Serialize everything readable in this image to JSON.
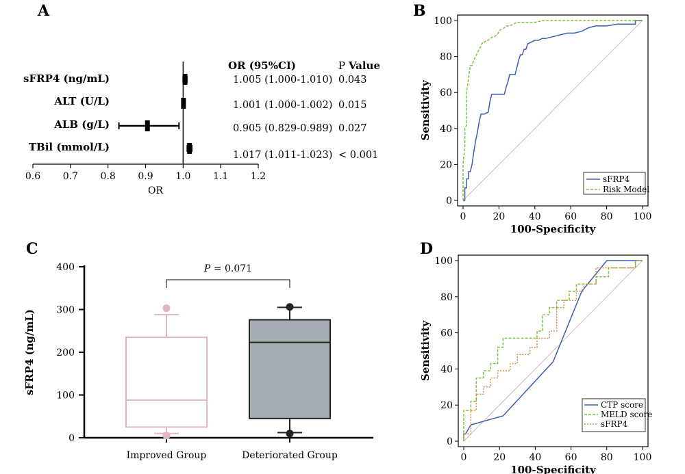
{
  "panel_labels": [
    "A",
    "B",
    "C",
    "D"
  ],
  "forest": {
    "header_or": "OR (95%CI)",
    "header_p_plain": "P ",
    "header_p_bold": "Value",
    "xlabel": "OR",
    "rows": [
      {
        "label": "sFRP4 (ng/mL)",
        "text": "1.005 (1.000-1.010)",
        "p": "0.043"
      },
      {
        "label": "ALT (U/L)",
        "text": "1.001 (1.000-1.002)",
        "p": "0.015"
      },
      {
        "label": "ALB (g/L)",
        "text": "0.905  (0.829-0.989)",
        "p": "0.027"
      },
      {
        "label": "TBil (mmol/L)",
        "text": "1.017 (1.011-1.023)",
        "p": "< 0.001"
      }
    ]
  },
  "chart_data": [
    {
      "panel": "A",
      "type": "forest",
      "xlabel": "OR",
      "xlim": [
        0.6,
        1.2
      ],
      "xticks": [
        "0.6",
        "0.7",
        "0.8",
        "0.9",
        "1.0",
        "1.1",
        "1.2"
      ],
      "reference_line": 1.0,
      "categories": [
        "sFRP4 (ng/mL)",
        "ALT (U/L)",
        "ALB (g/L)",
        "TBil (mmol/L)"
      ],
      "or": [
        1.005,
        1.001,
        0.905,
        1.017
      ],
      "ci_low": [
        1.0,
        1.0,
        0.829,
        1.011
      ],
      "ci_high": [
        1.01,
        1.002,
        0.989,
        1.023
      ],
      "p_values": [
        "0.043",
        "0.015",
        "0.027",
        "< 0.001"
      ]
    },
    {
      "panel": "B",
      "type": "line",
      "xlabel": "100-Specificity",
      "ylabel": "Sensitivity",
      "xlim": [
        0,
        100
      ],
      "ylim": [
        0,
        100
      ],
      "xticks": [
        "0",
        "20",
        "40",
        "60",
        "80",
        "100"
      ],
      "yticks": [
        "0",
        "20",
        "40",
        "60",
        "80",
        "100"
      ],
      "legend_position": "bottom-right",
      "reference_line": "diagonal",
      "series": [
        {
          "name": "sFRP4",
          "color": "#3a5fb0",
          "dash": "",
          "x": [
            0,
            1,
            1,
            2,
            2,
            3,
            3,
            4,
            5,
            6,
            7,
            8,
            9,
            10,
            11,
            12,
            14,
            15,
            16,
            17,
            18,
            19,
            20,
            21,
            23,
            24,
            25,
            26,
            27,
            28,
            29,
            30,
            31,
            32,
            33,
            34,
            35,
            36,
            38,
            40,
            42,
            44,
            46,
            50,
            54,
            58,
            62,
            66,
            70,
            74,
            80,
            86,
            96,
            96,
            100
          ],
          "y": [
            0,
            0,
            7,
            7,
            12,
            12,
            16,
            16,
            20,
            27,
            33,
            38,
            44,
            48,
            48,
            48,
            49,
            55,
            59,
            59,
            59,
            59,
            59,
            59,
            59,
            63,
            66,
            70,
            70,
            70,
            70,
            74,
            78,
            81,
            81,
            84,
            84,
            87,
            88,
            89,
            89,
            90,
            90,
            91,
            92,
            93,
            93,
            94,
            96,
            97,
            97,
            98,
            98,
            100,
            100
          ]
        },
        {
          "name": "Risk Model",
          "color": "#7fc241",
          "dash": "4,2",
          "x": [
            0,
            0,
            1,
            1,
            2,
            2,
            3,
            4,
            5,
            6,
            7,
            8,
            9,
            10,
            11,
            12,
            13,
            14,
            15,
            17,
            19,
            20,
            21,
            23,
            24,
            26,
            28,
            30,
            35,
            40,
            45,
            55,
            70,
            100
          ],
          "y": [
            0,
            20,
            30,
            40,
            42,
            60,
            68,
            75,
            75,
            78,
            80,
            82,
            84,
            86,
            88,
            88,
            89,
            89,
            90,
            91,
            92,
            94,
            95,
            96,
            97,
            97,
            98,
            99,
            99,
            99,
            100,
            100,
            100,
            100
          ]
        }
      ]
    },
    {
      "panel": "C",
      "type": "box",
      "ylabel": "sFRP4 (ng/mL)",
      "ylim": [
        0,
        400
      ],
      "yticks": [
        "0",
        "100",
        "200",
        "300",
        "400"
      ],
      "categories": [
        "Improved Group",
        "Deteriorated Group"
      ],
      "annotation": "P = 0.071",
      "boxes": [
        {
          "name": "Improved Group",
          "min": 10,
          "q1": 25,
          "median": 88,
          "q3": 235,
          "max": 288,
          "outliers": [
            5,
            303
          ],
          "fill": "#ffffff",
          "stroke": "#e2b7bf"
        },
        {
          "name": "Deteriorated Group",
          "min": 12,
          "q1": 45,
          "median": 223,
          "q3": 276,
          "max": 305,
          "outliers": [
            10,
            306
          ],
          "fill": "#a4adb1",
          "stroke": "#222222"
        }
      ]
    },
    {
      "panel": "D",
      "type": "line",
      "xlabel": "100-Specificity",
      "ylabel": "Sensitivity",
      "xlim": [
        0,
        100
      ],
      "ylim": [
        0,
        100
      ],
      "xticks": [
        "0",
        "20",
        "40",
        "60",
        "80",
        "100"
      ],
      "yticks": [
        "0",
        "20",
        "40",
        "60",
        "80",
        "100"
      ],
      "legend_position": "bottom-right",
      "reference_line": "diagonal",
      "series": [
        {
          "name": "CTP score",
          "color": "#3a5fb0",
          "dash": "",
          "x": [
            0,
            0,
            1,
            4,
            22,
            50,
            66,
            80,
            96,
            96,
            100
          ],
          "y": [
            0,
            4,
            4,
            9,
            14,
            44,
            83,
            100,
            100,
            100,
            100
          ]
        },
        {
          "name": "MELD score",
          "color": "#7fc241",
          "dash": "4,2",
          "x": [
            0,
            0,
            4,
            4,
            7,
            7,
            11,
            11,
            15,
            15,
            19,
            19,
            22,
            22,
            41,
            41,
            44,
            44,
            48,
            48,
            52,
            52,
            59,
            59,
            63,
            63,
            74,
            74,
            81,
            81,
            96,
            96,
            100
          ],
          "y": [
            0,
            17,
            17,
            22,
            22,
            35,
            35,
            39,
            39,
            43,
            43,
            52,
            52,
            57,
            57,
            61,
            61,
            70,
            70,
            74,
            74,
            78,
            78,
            83,
            83,
            87,
            87,
            91,
            91,
            96,
            96,
            100,
            100
          ]
        },
        {
          "name": "sFRP4",
          "color": "#d9893f",
          "dash": "2,2",
          "x": [
            0,
            0,
            4,
            4,
            7,
            7,
            11,
            11,
            15,
            15,
            19,
            19,
            26,
            26,
            30,
            30,
            37,
            37,
            41,
            41,
            48,
            48,
            52,
            52,
            56,
            56,
            63,
            63,
            67,
            67,
            74,
            74,
            96,
            96,
            100
          ],
          "y": [
            0,
            4,
            4,
            17,
            17,
            26,
            26,
            30,
            30,
            35,
            35,
            39,
            39,
            43,
            43,
            48,
            48,
            52,
            52,
            57,
            57,
            61,
            61,
            74,
            74,
            78,
            78,
            83,
            83,
            87,
            87,
            96,
            96,
            100,
            100
          ]
        }
      ]
    }
  ]
}
